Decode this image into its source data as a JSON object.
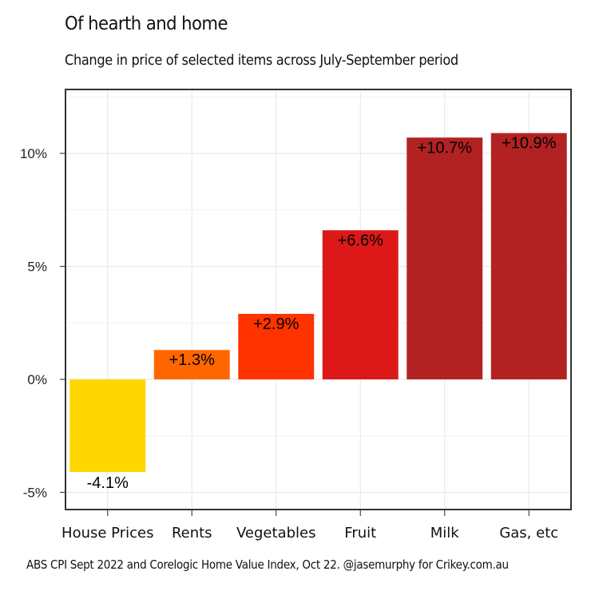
{
  "chart_data": {
    "type": "bar",
    "title": "Of hearth and home",
    "subtitle": "Change in price of selected items across July-September period",
    "caption": "ABS CPI Sept 2022 and Corelogic Home Value Index, Oct 22. @jasemurphy for Crikey.com.au",
    "xlabel": "",
    "ylabel": "",
    "categories": [
      "House Prices",
      "Rents",
      "Vegetables",
      "Fruit",
      "Milk",
      "Gas, etc"
    ],
    "values": [
      -4.1,
      1.3,
      2.9,
      6.6,
      10.7,
      10.9
    ],
    "data_labels": [
      "-4.1%",
      "+1.3%",
      "+2.9%",
      "+6.6%",
      "+10.7%",
      "+10.9%"
    ],
    "colors": [
      "#FFD700",
      "#FF6600",
      "#FF3300",
      "#DD1818",
      "#B22222",
      "#B22222"
    ],
    "yticks": [
      -5,
      0,
      5,
      10
    ],
    "ytick_labels": [
      "-5%",
      "0%",
      "5%",
      "10%"
    ],
    "ylim": [
      -5.76,
      12.83
    ],
    "grid": true,
    "legend": "none"
  }
}
